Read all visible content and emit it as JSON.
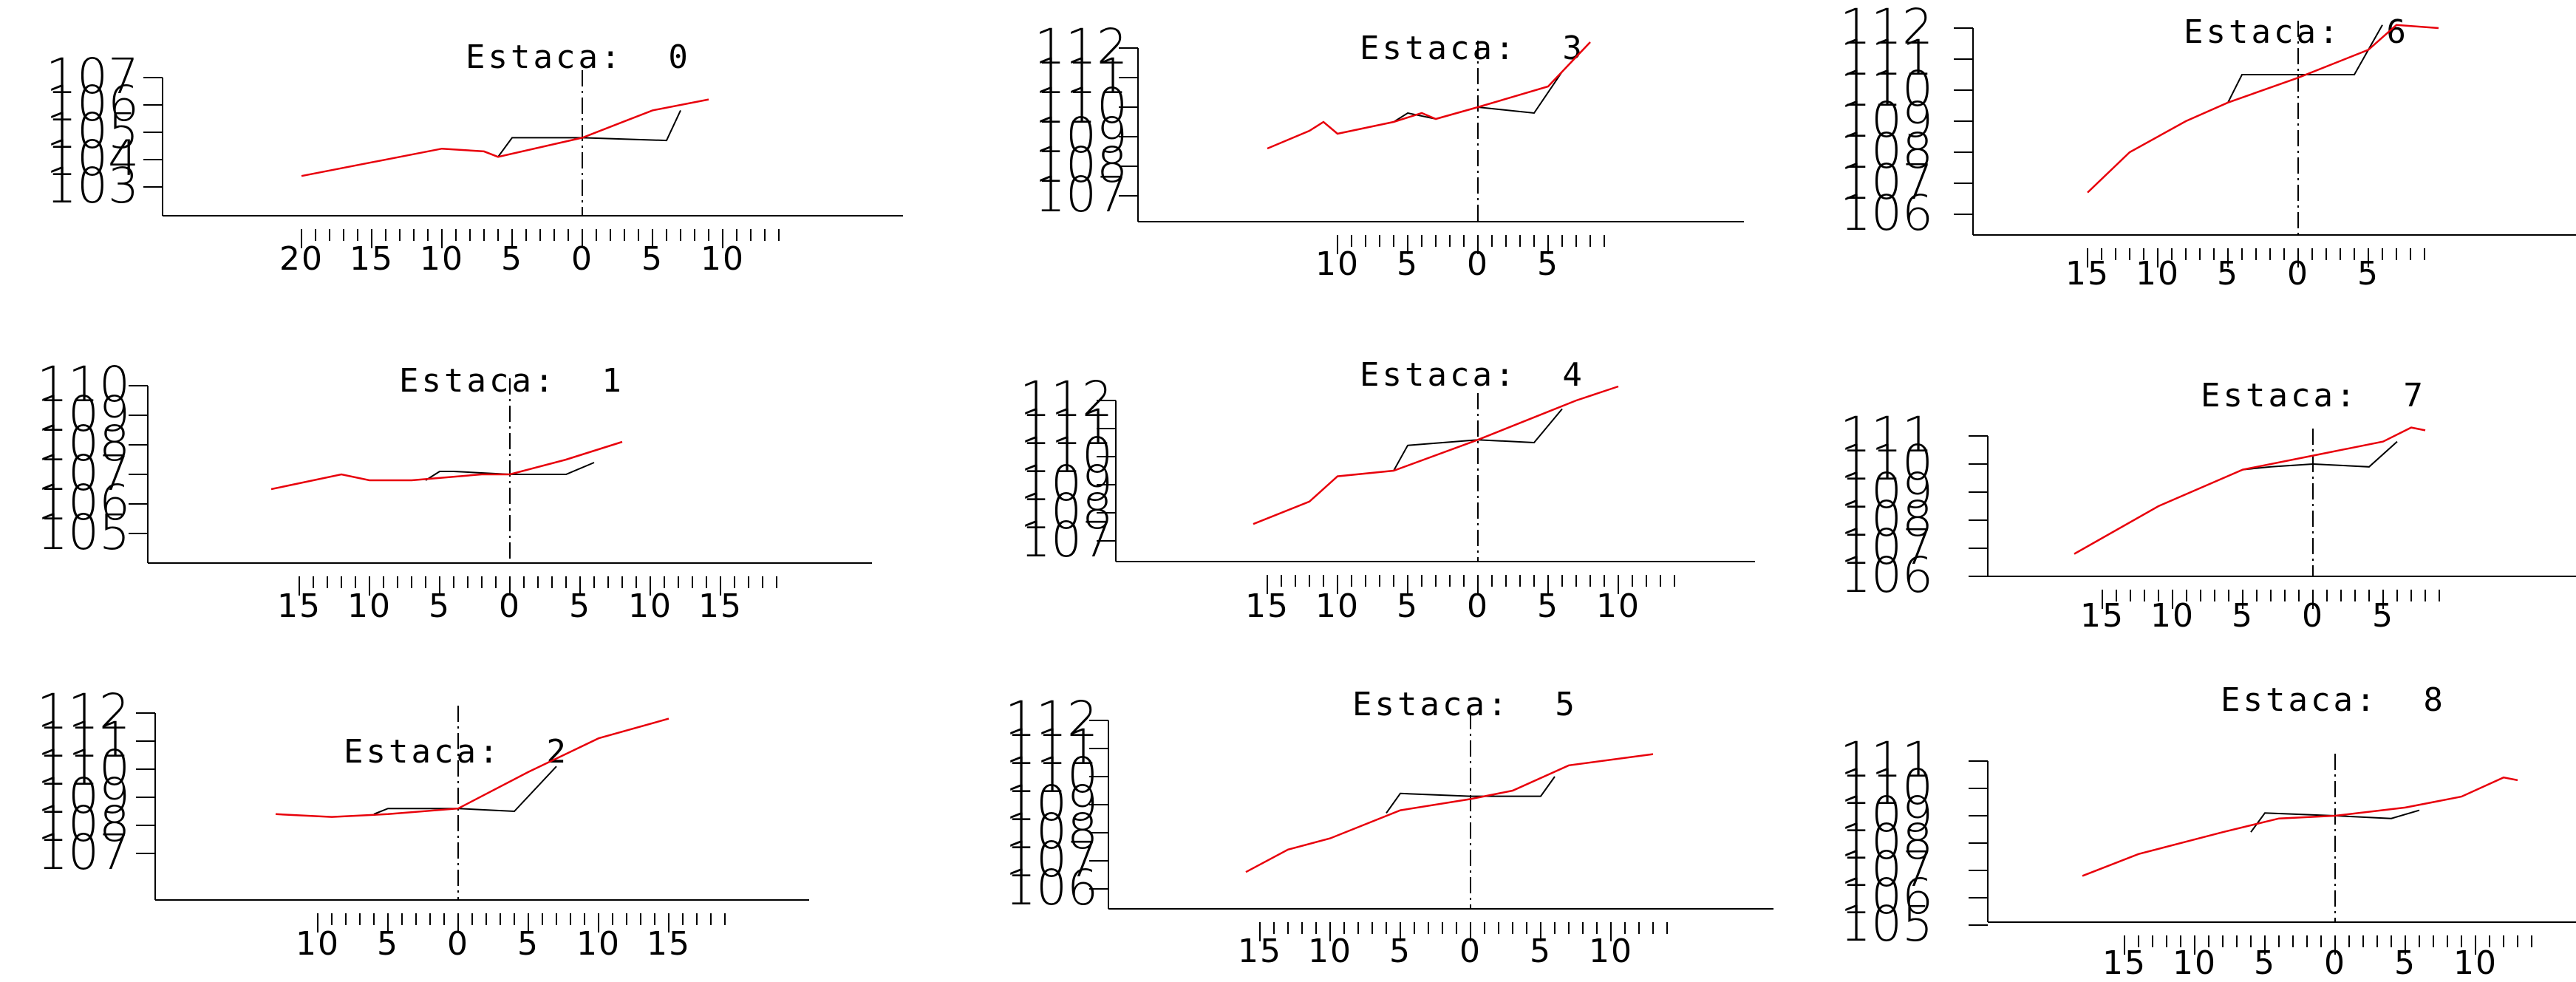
{
  "colors": {
    "terrain": "#e8000b",
    "template": "#000000",
    "axis": "#000000"
  },
  "title_prefix": "Estaca:",
  "sections": [
    {
      "title": "Estaca:  0",
      "station": "0",
      "elevation_labels": [
        "107",
        "106",
        "105",
        "104",
        "103"
      ],
      "offset_labels": [
        "20",
        "15",
        "10",
        "5",
        "0",
        "5",
        "10"
      ],
      "terrain": [
        [
          -20,
          103.4
        ],
        [
          -10,
          104.4
        ],
        [
          -7,
          104.3
        ],
        [
          -6,
          104.1
        ],
        [
          0,
          104.8
        ],
        [
          3,
          105.4
        ],
        [
          5,
          105.8
        ],
        [
          9,
          106.2
        ]
      ],
      "template": [
        [
          -6,
          104.1
        ],
        [
          -5,
          104.8
        ],
        [
          0,
          104.8
        ],
        [
          6,
          104.7
        ],
        [
          7,
          105.8
        ]
      ]
    },
    {
      "title": "Estaca:  3",
      "station": "3",
      "elevation_labels": [
        "112",
        "111",
        "110",
        "109",
        "108",
        "107"
      ],
      "offset_labels": [
        "10",
        "5",
        "0",
        "5"
      ],
      "terrain": [
        [
          -15,
          108.6
        ],
        [
          -12,
          109.2
        ],
        [
          -11,
          109.5
        ],
        [
          -10,
          109.1
        ],
        [
          -8,
          109.3
        ],
        [
          -6,
          109.5
        ],
        [
          -4,
          109.8
        ],
        [
          -3,
          109.6
        ],
        [
          0,
          110
        ],
        [
          5,
          110.7
        ],
        [
          8,
          112.2
        ]
      ],
      "template": [
        [
          -6,
          109.5
        ],
        [
          -5,
          109.8
        ],
        [
          -3,
          109.6
        ],
        [
          0,
          110
        ],
        [
          4,
          109.8
        ],
        [
          6,
          111.2
        ]
      ]
    },
    {
      "title": "Estaca:  6",
      "station": "6",
      "elevation_labels": [
        "112",
        "111",
        "110",
        "109",
        "108",
        "107",
        "106"
      ],
      "offset_labels": [
        "15",
        "10",
        "5",
        "0",
        "5"
      ],
      "terrain": [
        [
          -15,
          106.7
        ],
        [
          -12,
          108
        ],
        [
          -8,
          109
        ],
        [
          -5,
          109.6
        ],
        [
          0,
          110.4
        ],
        [
          5,
          111.3
        ],
        [
          7,
          112.1
        ],
        [
          10,
          112
        ]
      ],
      "template": [
        [
          -5,
          109.6
        ],
        [
          -4,
          110.5
        ],
        [
          0,
          110.5
        ],
        [
          4,
          110.5
        ],
        [
          6,
          112.1
        ]
      ]
    },
    {
      "title": "Estaca:  1",
      "station": "1",
      "elevation_labels": [
        "110",
        "109",
        "108",
        "107",
        "106",
        "105"
      ],
      "offset_labels": [
        "15",
        "10",
        "5",
        "0",
        "5",
        "10",
        "15"
      ],
      "terrain": [
        [
          -17,
          106.5
        ],
        [
          -12,
          107
        ],
        [
          -10,
          106.8
        ],
        [
          -7,
          106.8
        ],
        [
          -2,
          107
        ],
        [
          0,
          107
        ],
        [
          4,
          107.5
        ],
        [
          8,
          108.1
        ]
      ],
      "template": [
        [
          -6,
          106.8
        ],
        [
          -5,
          107.1
        ],
        [
          -4,
          107.1
        ],
        [
          0,
          107
        ],
        [
          4,
          107
        ],
        [
          6,
          107.4
        ]
      ]
    },
    {
      "title": "Estaca:  4",
      "station": "4",
      "elevation_labels": [
        "112",
        "111",
        "110",
        "109",
        "108",
        "107"
      ],
      "offset_labels": [
        "15",
        "10",
        "5",
        "0",
        "5",
        "10"
      ],
      "terrain": [
        [
          -16,
          107.6
        ],
        [
          -12,
          108.4
        ],
        [
          -10,
          109.3
        ],
        [
          -6,
          109.5
        ],
        [
          0,
          110.6
        ],
        [
          5,
          111.6
        ],
        [
          7,
          112
        ],
        [
          10,
          112.5
        ]
      ],
      "template": [
        [
          -6,
          109.5
        ],
        [
          -5,
          110.4
        ],
        [
          0,
          110.6
        ],
        [
          4,
          110.5
        ],
        [
          6,
          111.7
        ]
      ]
    },
    {
      "title": "Estaca:  7",
      "station": "7",
      "elevation_labels": [
        "111",
        "110",
        "109",
        "108",
        "107",
        "106"
      ],
      "offset_labels": [
        "15",
        "10",
        "5",
        "0",
        "5"
      ],
      "terrain": [
        [
          -17,
          106.8
        ],
        [
          -11,
          108.5
        ],
        [
          -5,
          109.8
        ],
        [
          0,
          110.3
        ],
        [
          5,
          110.8
        ],
        [
          7,
          111.3
        ],
        [
          8,
          111.2
        ]
      ],
      "template": [
        [
          -5,
          109.8
        ],
        [
          -3,
          109.9
        ],
        [
          0,
          110
        ],
        [
          4,
          109.9
        ],
        [
          6,
          110.8
        ]
      ]
    },
    {
      "title": "Estaca:  2",
      "station": "2",
      "elevation_labels": [
        "112",
        "111",
        "110",
        "109",
        "108",
        "107"
      ],
      "offset_labels": [
        "10",
        "5",
        "0",
        "5",
        "10",
        "15"
      ],
      "terrain": [
        [
          -13,
          108.4
        ],
        [
          -9,
          108.3
        ],
        [
          -5,
          108.4
        ],
        [
          0,
          108.6
        ],
        [
          5,
          109.9
        ],
        [
          10,
          111.1
        ],
        [
          15,
          111.8
        ]
      ],
      "template": [
        [
          -6,
          108.4
        ],
        [
          -5,
          108.6
        ],
        [
          0,
          108.6
        ],
        [
          4,
          108.5
        ],
        [
          7,
          110.1
        ]
      ]
    },
    {
      "title": "Estaca:  5",
      "station": "5",
      "elevation_labels": [
        "112",
        "111",
        "110",
        "109",
        "108",
        "107",
        "106"
      ],
      "offset_labels": [
        "15",
        "10",
        "5",
        "0",
        "5",
        "10"
      ],
      "terrain": [
        [
          -16,
          106.6
        ],
        [
          -13,
          107.4
        ],
        [
          -10,
          107.8
        ],
        [
          -5,
          108.8
        ],
        [
          0,
          109.2
        ],
        [
          3,
          109.5
        ],
        [
          7,
          110.4
        ],
        [
          13,
          110.8
        ]
      ],
      "template": [
        [
          -6,
          108.7
        ],
        [
          -5,
          109.4
        ],
        [
          0,
          109.3
        ],
        [
          5,
          109.3
        ],
        [
          6,
          110
        ]
      ]
    },
    {
      "title": "Estaca:  8",
      "station": "8",
      "elevation_labels": [
        "111",
        "110",
        "109",
        "108",
        "107",
        "106",
        "105"
      ],
      "offset_labels": [
        "15",
        "10",
        "5",
        "0",
        "5",
        "10"
      ],
      "terrain": [
        [
          -18,
          106.8
        ],
        [
          -14,
          107.6
        ],
        [
          -8,
          108.4
        ],
        [
          -4,
          108.9
        ],
        [
          0,
          109
        ],
        [
          5,
          109.3
        ],
        [
          9,
          109.7
        ],
        [
          12,
          110.4
        ],
        [
          13,
          110.3
        ]
      ],
      "template": [
        [
          -6,
          108.4
        ],
        [
          -5,
          109.1
        ],
        [
          0,
          109
        ],
        [
          4,
          108.9
        ],
        [
          6,
          109.2
        ]
      ]
    }
  ]
}
